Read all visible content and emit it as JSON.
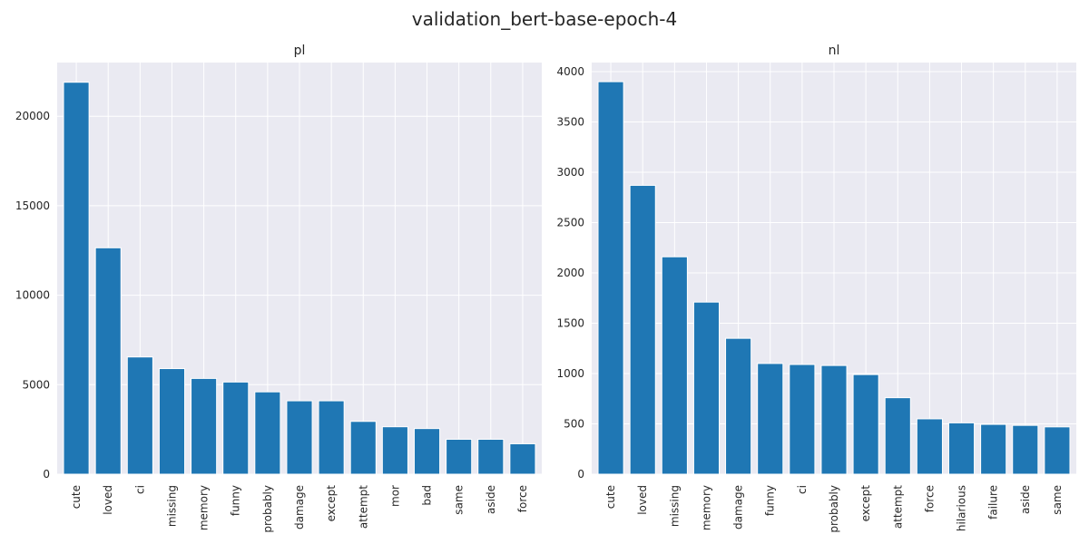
{
  "figure": {
    "title": "validation_bert-base-epoch-4"
  },
  "chart_data": [
    {
      "type": "bar",
      "title": "pl",
      "xlabel": "",
      "ylabel": "",
      "ylim": [
        0,
        23000
      ],
      "yticks": [
        0,
        5000,
        10000,
        15000,
        20000
      ],
      "grid": true,
      "categories": [
        "cute",
        "loved",
        "ci",
        "missing",
        "memory",
        "funny",
        "probably",
        "damage",
        "except",
        "attempt",
        "mor",
        "bad",
        "same",
        "aside",
        "force"
      ],
      "values": [
        21900,
        12650,
        6550,
        5900,
        5350,
        5150,
        4600,
        4100,
        4100,
        2950,
        2650,
        2550,
        1950,
        1950,
        1700
      ],
      "color": "#1f77b4"
    },
    {
      "type": "bar",
      "title": "nl",
      "xlabel": "",
      "ylabel": "",
      "ylim": [
        0,
        4090
      ],
      "yticks": [
        0,
        500,
        1000,
        1500,
        2000,
        2500,
        3000,
        3500,
        4000
      ],
      "grid": true,
      "categories": [
        "cute",
        "loved",
        "missing",
        "memory",
        "damage",
        "funny",
        "ci",
        "probably",
        "except",
        "attempt",
        "force",
        "hilarious",
        "failure",
        "aside",
        "same"
      ],
      "values": [
        3900,
        2870,
        2160,
        1710,
        1350,
        1100,
        1090,
        1080,
        990,
        760,
        550,
        510,
        495,
        485,
        470
      ],
      "color": "#1f77b4"
    }
  ]
}
